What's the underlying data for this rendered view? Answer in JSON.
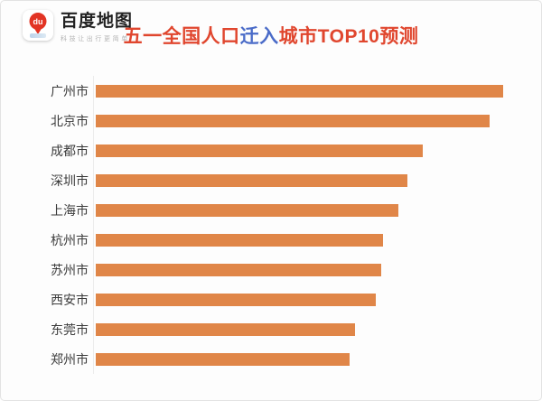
{
  "frame": {
    "background": "#fdfdfd",
    "border_color": "#e3e3e3"
  },
  "header": {
    "logo": {
      "brand_name": "百度地图",
      "slogan": "科技让出行更简单",
      "pin_label": "du",
      "pin_color": "#e23424"
    },
    "title": {
      "prefix": "五一全国人口",
      "highlight": "迁入",
      "suffix": "城市TOP10预测",
      "primary_color": "#e0462e",
      "highlight_color": "#4a6bc8"
    }
  },
  "chart_data": {
    "type": "bar",
    "orientation": "horizontal",
    "title": "五一全国人口迁入城市TOP10预测",
    "categories": [
      "广州市",
      "北京市",
      "成都市",
      "深圳市",
      "上海市",
      "杭州市",
      "苏州市",
      "西安市",
      "东莞市",
      "郑州市"
    ],
    "values": [
      100,
      96.7,
      80.3,
      76.5,
      74.3,
      70.5,
      70.1,
      68.7,
      63.6,
      62.3
    ],
    "xlabel": "",
    "ylabel": "",
    "xlim": [
      0,
      100
    ],
    "value_labels_shown": false,
    "grid": false,
    "legend": false,
    "bar_color": "#e08648",
    "axis_line_color": "#ececec"
  }
}
